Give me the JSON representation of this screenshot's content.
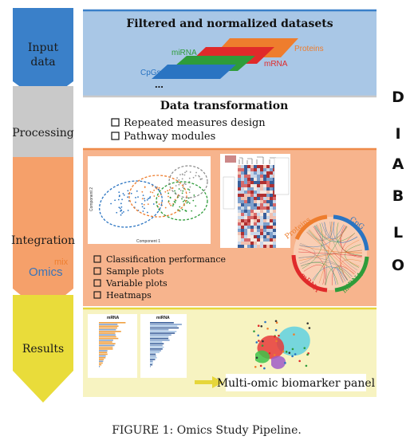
{
  "stages": [
    {
      "label_lines": [
        "Input",
        "data"
      ],
      "color": "#3a80c9"
    },
    {
      "label_lines": [
        "Processing"
      ],
      "color": "#c9c9c9"
    },
    {
      "label_lines": [
        "Integration"
      ],
      "color": "#f5a06a"
    },
    {
      "label_lines": [
        "Results"
      ],
      "color": "#e9dc3a"
    }
  ],
  "panels": {
    "input": {
      "title": "Filtered and normalized datasets",
      "layers": [
        "Proteins",
        "mRNA",
        "miRNA",
        "CpGs"
      ],
      "ellipsis": "..."
    },
    "processing": {
      "title": "Data transformation",
      "bullets": [
        "Repeated measures design",
        "Pathway modules"
      ]
    },
    "integration": {
      "bullets": [
        "Classification performance",
        "Sample plots",
        "Variable plots",
        "Heatmaps"
      ],
      "scatter": {
        "xlabel": "Component 1",
        "ylabel": "Component 2"
      },
      "circos": [
        "Proteins",
        "CpG",
        "miRNA",
        "mRNA"
      ],
      "logo": {
        "word": "Omics",
        "superscript": "mix"
      }
    },
    "results": {
      "panel_label": "Multi-omic biomarker panel",
      "barplots": [
        "mRNA",
        "miRNA"
      ]
    }
  },
  "side_text": [
    "D",
    "I",
    "A",
    "B",
    "L",
    "O"
  ],
  "caption": "FIGURE 1: Omics Study Pipeline.",
  "colors": {
    "input_bg": "#a9c7e6",
    "processing_bg": "#ffffff",
    "integration_bg": "#f7b48d",
    "results_bg": "#f7f3c1",
    "proteins": "#ee7d2d",
    "mrna": "#e02a2a",
    "mirna": "#2e9c3a",
    "cpgs": "#2a74c2",
    "arrow_yellow": "#e6d63a"
  }
}
